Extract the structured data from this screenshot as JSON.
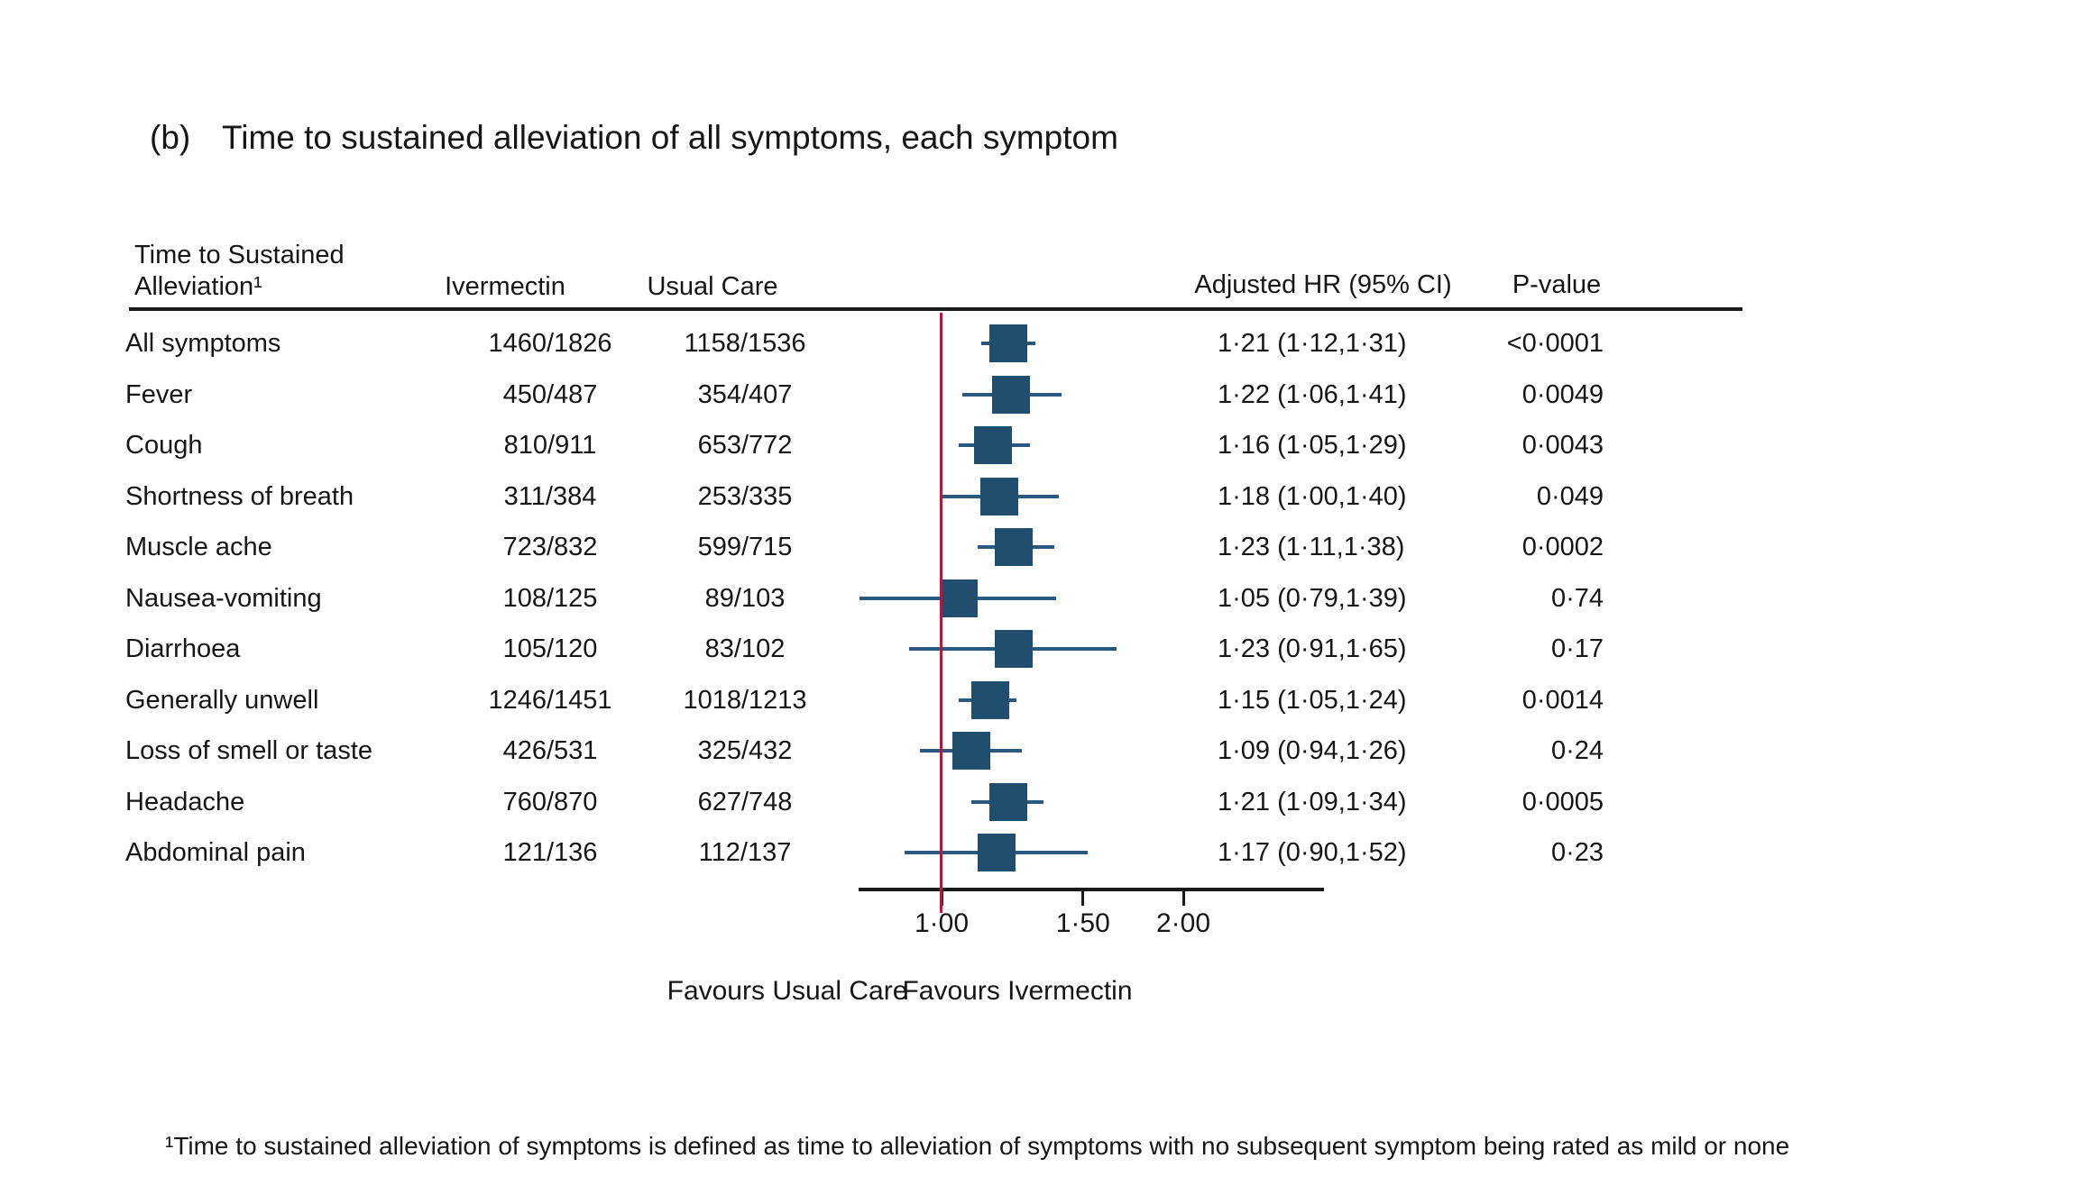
{
  "figure": {
    "panel_label": "(b)",
    "title": "Time to sustained alleviation of all symptoms, each symptom",
    "footnote": "¹Time to sustained alleviation of symptoms is defined as time to alleviation of symptoms with no subsequent symptom being rated as mild or none"
  },
  "table": {
    "col1_header_line1": "Time to Sustained",
    "col1_header_line2": "Alleviation¹",
    "col_ivermectin": "Ivermectin",
    "col_usual_care": "Usual Care",
    "col_hr": "Adjusted HR (95% CI)",
    "col_p": "P-value"
  },
  "chart_data": {
    "type": "forest",
    "x_scale": "log",
    "x_range": [
      0.78,
      3.0
    ],
    "reference_line": 1.0,
    "ticks": [
      1.0,
      1.5,
      2.0
    ],
    "tick_labels": [
      "1·00",
      "1·50",
      "2·00"
    ],
    "favours_left": "Favours Usual Care",
    "favours_right": "Favours Ivermectin",
    "marker_color": "#1F4E6E",
    "ci_color": "#29597E",
    "reference_color": "#C1113C",
    "rows": [
      {
        "name": "All symptoms",
        "ivermectin": "1460/1826",
        "usual_care": "1158/1536",
        "hr": 1.21,
        "ci_low": 1.12,
        "ci_high": 1.31,
        "hr_label": "1·21 (1·12,1·31)",
        "p_label": "<0·0001"
      },
      {
        "name": "Fever",
        "ivermectin": "450/487",
        "usual_care": "354/407",
        "hr": 1.22,
        "ci_low": 1.06,
        "ci_high": 1.41,
        "hr_label": "1·22 (1·06,1·41)",
        "p_label": "0·0049"
      },
      {
        "name": "Cough",
        "ivermectin": "810/911",
        "usual_care": "653/772",
        "hr": 1.16,
        "ci_low": 1.05,
        "ci_high": 1.29,
        "hr_label": "1·16 (1·05,1·29)",
        "p_label": "0·0043"
      },
      {
        "name": "Shortness of breath",
        "ivermectin": "311/384",
        "usual_care": "253/335",
        "hr": 1.18,
        "ci_low": 1.0,
        "ci_high": 1.4,
        "hr_label": "1·18 (1·00,1·40)",
        "p_label": "0·049"
      },
      {
        "name": "Muscle ache",
        "ivermectin": "723/832",
        "usual_care": "599/715",
        "hr": 1.23,
        "ci_low": 1.11,
        "ci_high": 1.38,
        "hr_label": "1·23 (1·11,1·38)",
        "p_label": "0·0002"
      },
      {
        "name": "Nausea-vomiting",
        "ivermectin": "108/125",
        "usual_care": "89/103",
        "hr": 1.05,
        "ci_low": 0.79,
        "ci_high": 1.39,
        "hr_label": "1·05 (0·79,1·39)",
        "p_label": "0·74"
      },
      {
        "name": "Diarrhoea",
        "ivermectin": "105/120",
        "usual_care": "83/102",
        "hr": 1.23,
        "ci_low": 0.91,
        "ci_high": 1.65,
        "hr_label": "1·23 (0·91,1·65)",
        "p_label": "0·17"
      },
      {
        "name": "Generally unwell",
        "ivermectin": "1246/1451",
        "usual_care": "1018/1213",
        "hr": 1.15,
        "ci_low": 1.05,
        "ci_high": 1.24,
        "hr_label": "1·15 (1·05,1·24)",
        "p_label": "0·0014"
      },
      {
        "name": "Loss of smell or taste",
        "ivermectin": "426/531",
        "usual_care": "325/432",
        "hr": 1.09,
        "ci_low": 0.94,
        "ci_high": 1.26,
        "hr_label": "1·09 (0·94,1·26)",
        "p_label": "0·24"
      },
      {
        "name": "Headache",
        "ivermectin": "760/870",
        "usual_care": "627/748",
        "hr": 1.21,
        "ci_low": 1.09,
        "ci_high": 1.34,
        "hr_label": "1·21 (1·09,1·34)",
        "p_label": "0·0005"
      },
      {
        "name": "Abdominal pain",
        "ivermectin": "121/136",
        "usual_care": "112/137",
        "hr": 1.17,
        "ci_low": 0.9,
        "ci_high": 1.52,
        "hr_label": "1·17 (0·90,1·52)",
        "p_label": "0·23"
      }
    ]
  }
}
